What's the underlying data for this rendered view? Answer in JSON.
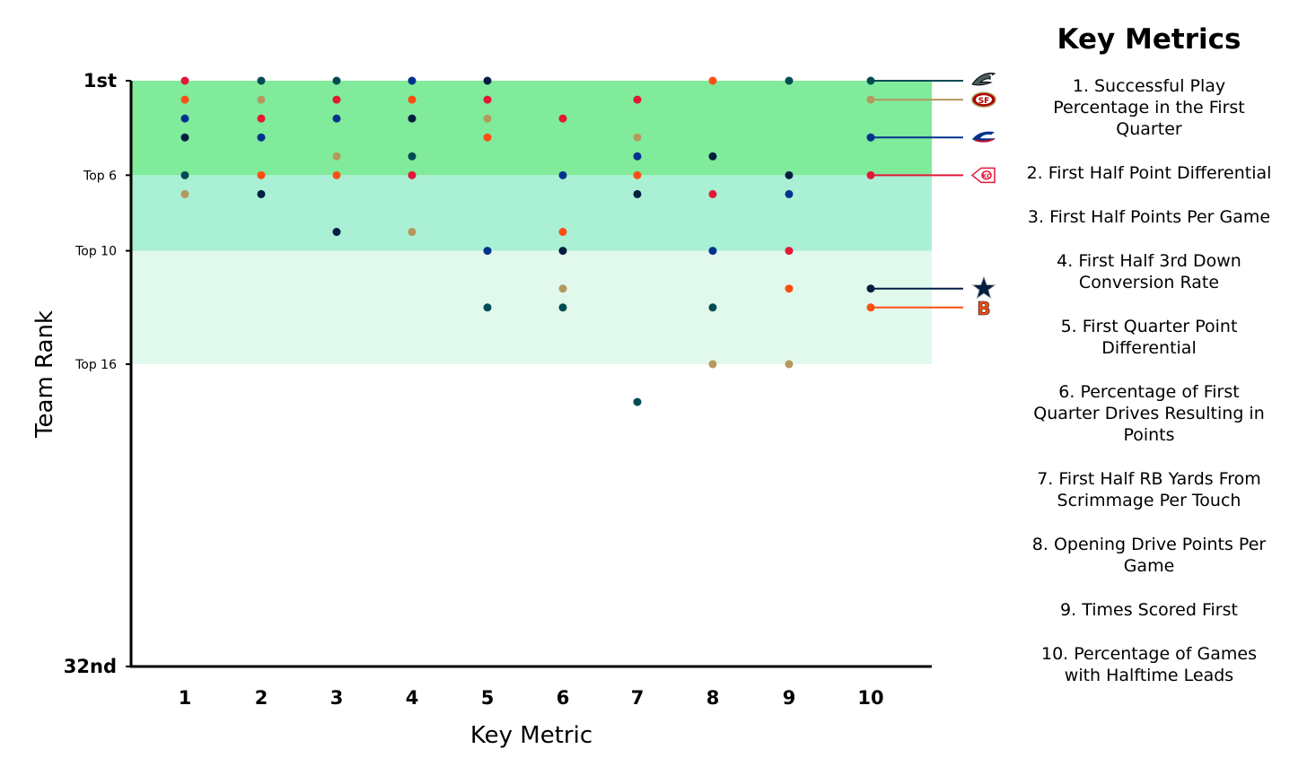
{
  "legend": {
    "title": "Key Metrics",
    "items": [
      "1. Successful Play Percentage in the First Quarter",
      "2. First Half Point Differential",
      "3. First Half Points Per Game",
      "4. First Half 3rd Down Conversion Rate",
      "5. First Quarter Point Differential",
      "6. Percentage of First Quarter Drives Resulting in Points",
      "7. First Half RB Yards From Scrimmage Per Touch",
      "8. Opening Drive Points Per Game",
      "9. Times Scored First",
      "10. Percentage of Games with Halftime Leads"
    ]
  },
  "chart_data": {
    "type": "scatter",
    "title": "",
    "xlabel": "Key Metric",
    "ylabel": "Team Rank",
    "x_categories": [
      "1",
      "2",
      "3",
      "4",
      "5",
      "6",
      "7",
      "8",
      "9",
      "10"
    ],
    "ylim": [
      1,
      32
    ],
    "y_reversed": true,
    "y_ticks": [
      {
        "value": 1,
        "label": "1st",
        "bold": true
      },
      {
        "value": 6,
        "label": "Top 6",
        "bold": false
      },
      {
        "value": 10,
        "label": "Top 10",
        "bold": false
      },
      {
        "value": 16,
        "label": "Top 16",
        "bold": false
      },
      {
        "value": 32,
        "label": "32nd",
        "bold": true
      }
    ],
    "bands": [
      {
        "from": 1,
        "to": 6,
        "color": "#80eb9b"
      },
      {
        "from": 6,
        "to": 10,
        "color": "#a9f0d4"
      },
      {
        "from": 10,
        "to": 16,
        "color": "#e1f8ec"
      }
    ],
    "series": [
      {
        "team_icon": "eagles-logo-icon",
        "color": "#004c54",
        "values": [
          6,
          1,
          1,
          5,
          13,
          13,
          18,
          13,
          1,
          1
        ]
      },
      {
        "team_icon": "49ers-logo-icon",
        "color": "#b3995d",
        "values": [
          7,
          2,
          5,
          9,
          3,
          12,
          4,
          16,
          16,
          2
        ]
      },
      {
        "team_icon": "bills-logo-icon",
        "color": "#00338d",
        "values": [
          3,
          4,
          3,
          1,
          10,
          6,
          5,
          10,
          7,
          4
        ]
      },
      {
        "team_icon": "chiefs-logo-icon",
        "color": "#e31837",
        "values": [
          1,
          3,
          2,
          6,
          2,
          3,
          2,
          7,
          10,
          6
        ]
      },
      {
        "team_icon": "cowboys-logo-icon",
        "color": "#041e42",
        "values": [
          4,
          7,
          9,
          3,
          1,
          10,
          7,
          5,
          6,
          12
        ]
      },
      {
        "team_icon": "bengals-logo-icon",
        "color": "#fb4f14",
        "values": [
          2,
          6,
          6,
          2,
          4,
          9,
          6,
          1,
          12,
          13
        ]
      }
    ]
  }
}
